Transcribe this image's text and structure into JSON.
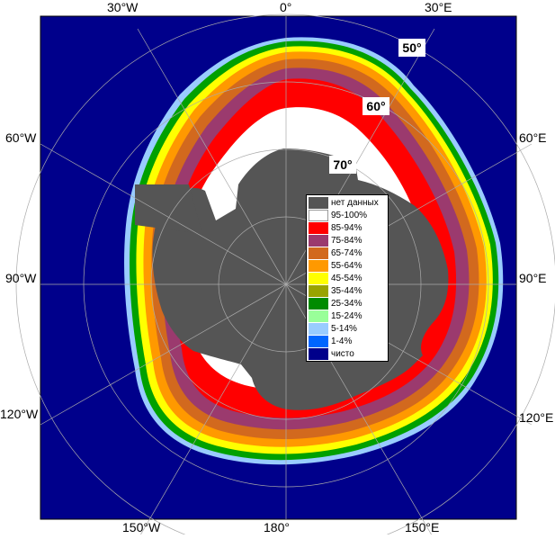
{
  "map": {
    "longitude_labels": {
      "top": [
        "30°W",
        "0°",
        "30°E"
      ],
      "left": [
        "60°W",
        "90°W",
        "120°W"
      ],
      "right": [
        "60°E",
        "90°E",
        "120°E"
      ],
      "bottom": [
        "150°W",
        "180°",
        "150°E"
      ]
    },
    "latitude_labels": [
      "50°",
      "60°",
      "70°"
    ],
    "colors": {
      "ocean_clear": "#00008b",
      "no_data": "#555555",
      "background": "#ffffff"
    }
  },
  "legend": {
    "items": [
      {
        "label": "нет данных",
        "color": "#555555"
      },
      {
        "label": "95-100%",
        "color": "#ffffff"
      },
      {
        "label": "85-94%",
        "color": "#ff0000"
      },
      {
        "label": "75-84%",
        "color": "#9b3a6e"
      },
      {
        "label": "65-74%",
        "color": "#d2691e"
      },
      {
        "label": "55-64%",
        "color": "#ff9900"
      },
      {
        "label": "45-54%",
        "color": "#ffff00"
      },
      {
        "label": "35-44%",
        "color": "#99a300"
      },
      {
        "label": "25-34%",
        "color": "#008b00"
      },
      {
        "label": "15-24%",
        "color": "#99ff99"
      },
      {
        "label": "5-14%",
        "color": "#99ccff"
      },
      {
        "label": "1-4%",
        "color": "#0066ff"
      },
      {
        "label": "чисто",
        "color": "#00008b"
      }
    ]
  }
}
